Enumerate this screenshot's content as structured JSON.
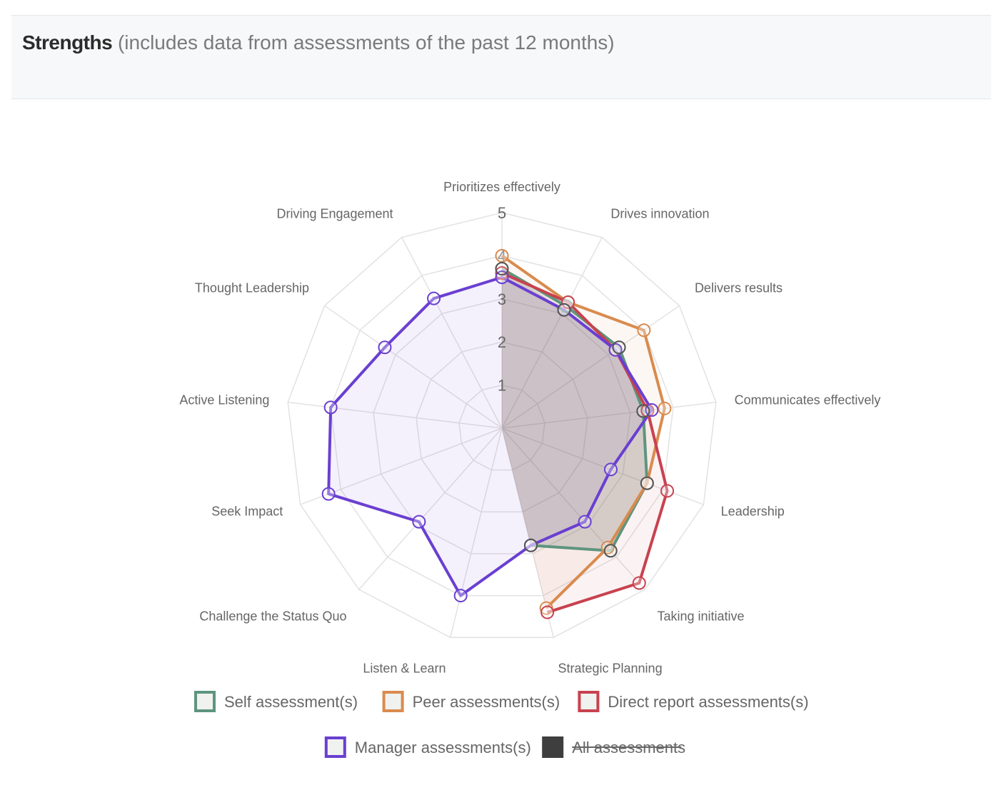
{
  "panel": {
    "title": "Strengths",
    "subtitle": "(includes data from assessments of the past 12 months)"
  },
  "chart_data": {
    "type": "radar",
    "axes": [
      "Prioritizes effectively",
      "Drives innovation",
      "Delivers results",
      "Communicates effectively",
      "Leadership",
      "Taking initiative",
      "Strategic Planning",
      "Listen & Learn",
      "Challenge the Status Quo",
      "Seek Impact",
      "Active Listening",
      "Thought Leadership",
      "Driving Engagement"
    ],
    "scale": {
      "min": 0,
      "max": 5,
      "ticks": [
        "1",
        "2",
        "3",
        "4",
        "5"
      ]
    },
    "grid": true,
    "legend_position": "bottom",
    "series": [
      {
        "name": "Self assessment(s)",
        "color": "#5e957e",
        "hidden": false,
        "values": [
          3.7,
          3.2,
          3.3,
          3.3,
          3.6,
          3.8,
          2.8,
          null,
          null,
          null,
          null,
          null,
          null
        ]
      },
      {
        "name": "Peer assessments(s)",
        "color": "#d98b4e",
        "hidden": false,
        "values": [
          4.0,
          3.3,
          4.0,
          3.8,
          3.6,
          3.7,
          4.3,
          null,
          null,
          null,
          null,
          null,
          null
        ]
      },
      {
        "name": "Direct report assessments(s)",
        "color": "#c8424f",
        "hidden": false,
        "values": [
          3.6,
          3.3,
          3.2,
          3.4,
          4.1,
          4.8,
          4.4,
          null,
          null,
          null,
          null,
          null,
          null
        ]
      },
      {
        "name": "Manager assessments(s)",
        "color": "#6a3fd1",
        "hidden": false,
        "values": [
          3.5,
          3.1,
          3.2,
          3.5,
          2.7,
          2.9,
          2.8,
          4.0,
          2.9,
          4.3,
          4.0,
          3.3,
          3.4
        ]
      },
      {
        "name": "All assessments",
        "color": "#3e3e3e",
        "hidden": true,
        "values": [
          3.7,
          3.1,
          3.3,
          3.3,
          3.6,
          3.8,
          2.8,
          null,
          null,
          null,
          null,
          null,
          null
        ]
      }
    ]
  }
}
